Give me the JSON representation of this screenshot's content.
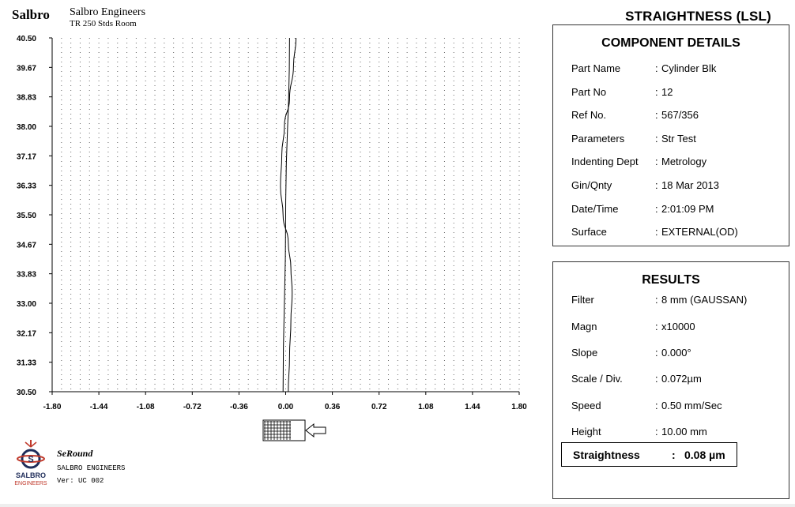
{
  "header": {
    "brand": "Salbro",
    "company": "Salbro Engineers",
    "room": "TR 250 Stds Room",
    "report_title": "STRAIGHTNESS (LSL)"
  },
  "component_details": {
    "title": "COMPONENT DETAILS",
    "rows": [
      {
        "label": "Part Name",
        "sep": ":",
        "value": "Cylinder Blk"
      },
      {
        "label": "Part No",
        "sep": ":",
        "value": "12"
      },
      {
        "label": "Ref No.",
        "sep": ":",
        "value": "567/356"
      },
      {
        "label": "Parameters",
        "sep": ":",
        "value": "Str Test"
      },
      {
        "label": "Indenting Dept",
        "sep": ":",
        "value": "Metrology"
      },
      {
        "label": "Gin/Qnty",
        "sep": ":",
        "value": "18 Mar 2013"
      },
      {
        "label": "Date/Time",
        "sep": ":",
        "value": "2:01:09 PM"
      },
      {
        "label": "Surface",
        "sep": ":",
        "value": "EXTERNAL(OD)"
      }
    ]
  },
  "results": {
    "title": "RESULTS",
    "rows": [
      {
        "label": "Filter",
        "sep": ":",
        "value": "8 mm (GAUSSAN)"
      },
      {
        "label": "Magn",
        "sep": ":",
        "value": "x10000"
      },
      {
        "label": "Slope",
        "sep": ":",
        "value": "0.000°"
      },
      {
        "label": "Scale / Div.",
        "sep": ":",
        "value": "0.072µm"
      },
      {
        "label": "Speed",
        "sep": ":",
        "value": "0.50 mm/Sec"
      },
      {
        "label": "Height",
        "sep": ":",
        "value": "10.00 mm"
      }
    ],
    "straightness": {
      "label": "Straightness",
      "sep": ":",
      "value": "0.08 µm"
    }
  },
  "footer": {
    "logo_text": "SALBRO",
    "logo_subtext": "ENGINEERS",
    "app_name": "SeRound",
    "company": "SALBRO ENGINEERS",
    "version": "Ver: UC 002"
  },
  "chart_data": {
    "type": "line",
    "title": "",
    "xlabel": "",
    "ylabel": "",
    "x_ticks": [
      "-1.80",
      "-1.44",
      "-1.08",
      "-0.72",
      "-0.36",
      "0.00",
      "0.36",
      "0.72",
      "1.08",
      "1.44",
      "1.80"
    ],
    "y_ticks": [
      "40.50",
      "39.67",
      "38.83",
      "38.00",
      "37.17",
      "36.33",
      "35.50",
      "34.67",
      "33.83",
      "33.00",
      "32.17",
      "31.33",
      "30.50"
    ],
    "xlim": [
      -1.8,
      1.8
    ],
    "ylim": [
      30.5,
      40.5
    ],
    "grid": "dotted",
    "series": [
      {
        "points": [
          {
            "x": 0.02,
            "y": 30.5
          },
          {
            "x": 0.03,
            "y": 31.5
          },
          {
            "x": 0.04,
            "y": 32.5
          },
          {
            "x": 0.05,
            "y": 33.3
          },
          {
            "x": 0.04,
            "y": 34.0
          },
          {
            "x": 0.02,
            "y": 34.7
          },
          {
            "x": -0.02,
            "y": 35.5
          },
          {
            "x": -0.04,
            "y": 36.3
          },
          {
            "x": -0.03,
            "y": 37.2
          },
          {
            "x": -0.01,
            "y": 38.0
          },
          {
            "x": 0.03,
            "y": 38.8
          },
          {
            "x": 0.06,
            "y": 39.7
          },
          {
            "x": 0.08,
            "y": 40.5
          }
        ]
      },
      {
        "points": [
          {
            "x": -0.02,
            "y": 30.5
          },
          {
            "x": 0.0,
            "y": 35.5
          },
          {
            "x": 0.03,
            "y": 40.5
          }
        ]
      }
    ]
  }
}
